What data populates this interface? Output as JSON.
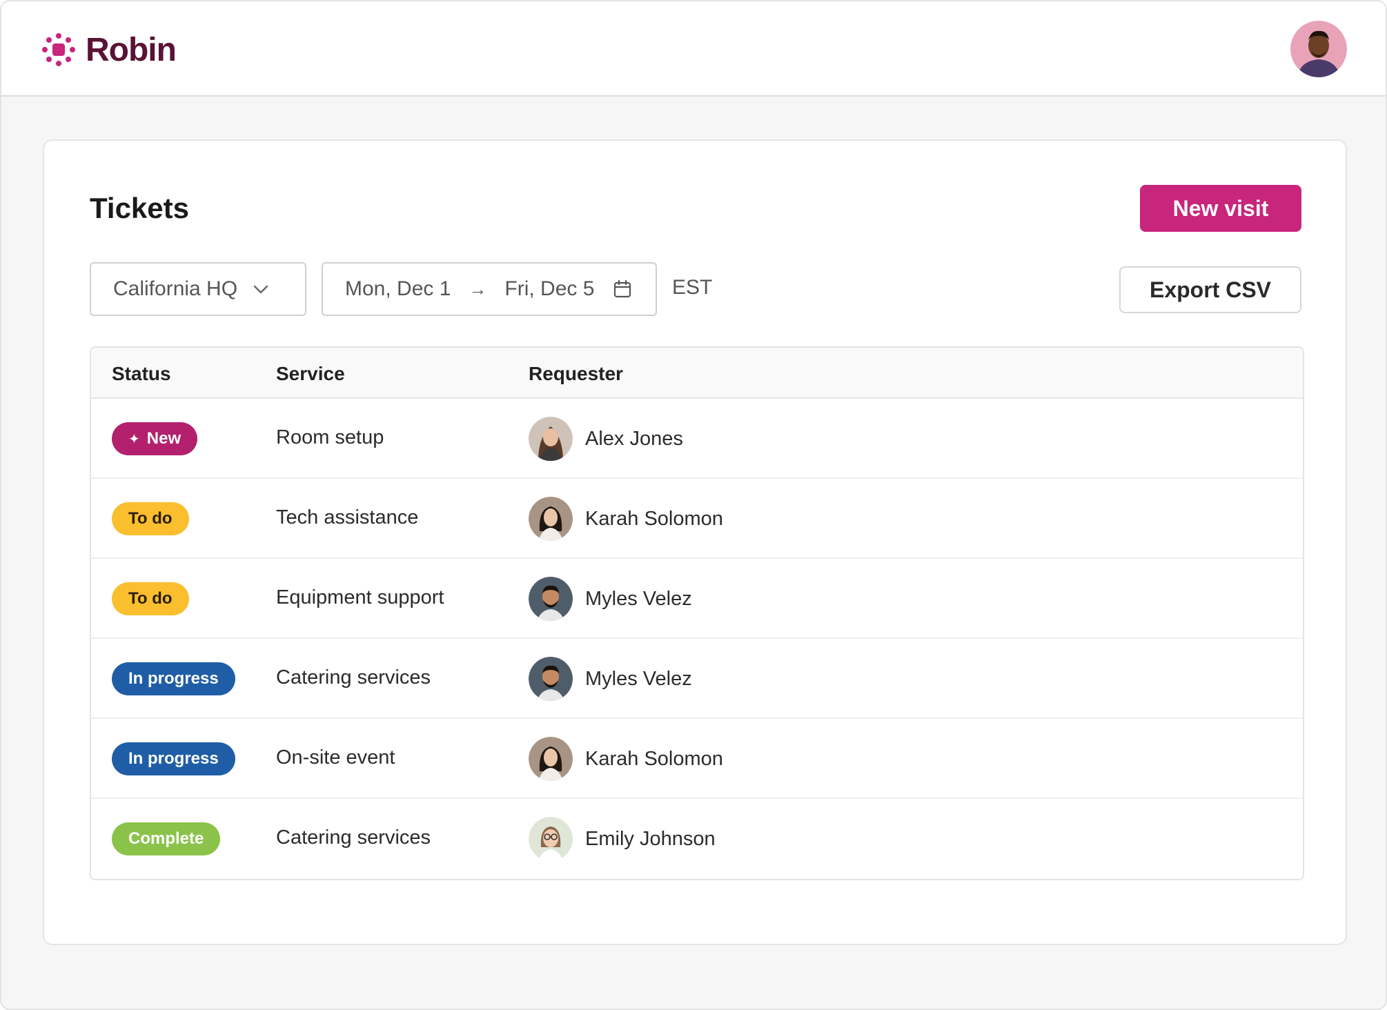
{
  "brand": {
    "name": "Robin",
    "color": "#5a1236",
    "mark_color": "#c8257c"
  },
  "header": {
    "avatar_icon": "user-avatar"
  },
  "page": {
    "title": "Tickets"
  },
  "actions": {
    "new_visit": "New visit",
    "export_csv": "Export CSV"
  },
  "filters": {
    "location": "California HQ",
    "date_start": "Mon, Dec 1",
    "date_end": "Fri, Dec 5",
    "arrow": "→",
    "timezone": "EST"
  },
  "table": {
    "columns": [
      "Status",
      "Service",
      "Requester"
    ],
    "rows": [
      {
        "status": "New",
        "status_kind": "new",
        "service": "Room setup",
        "requester": "Alex Jones",
        "avatar": "woman-long-hair"
      },
      {
        "status": "To do",
        "status_kind": "todo",
        "service": "Tech assistance",
        "requester": "Karah Solomon",
        "avatar": "woman-dark-hair"
      },
      {
        "status": "To do",
        "status_kind": "todo",
        "service": "Equipment support",
        "requester": "Myles Velez",
        "avatar": "man-beard"
      },
      {
        "status": "In progress",
        "status_kind": "progress",
        "service": "Catering services",
        "requester": "Myles Velez",
        "avatar": "man-beard"
      },
      {
        "status": "In progress",
        "status_kind": "progress",
        "service": "On-site event",
        "requester": "Karah Solomon",
        "avatar": "woman-dark-hair"
      },
      {
        "status": "Complete",
        "status_kind": "complete",
        "service": "Catering services",
        "requester": "Emily Johnson",
        "avatar": "woman-glasses"
      }
    ]
  },
  "colors": {
    "primary": "#c8257c",
    "new": "#b3206e",
    "todo": "#fbbe2e",
    "progress": "#1f5da6",
    "complete": "#8bc34a"
  }
}
